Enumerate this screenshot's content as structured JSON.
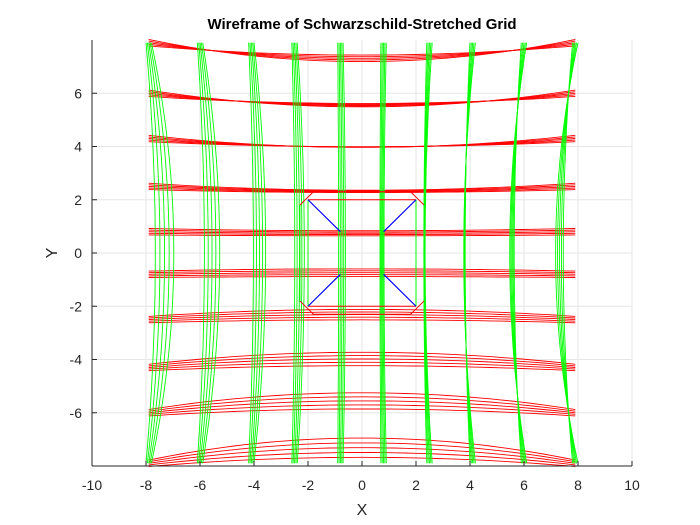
{
  "chart_data": {
    "type": "line",
    "title": "Wireframe of Schwarzschild-Stretched Grid",
    "xlabel": "X",
    "ylabel": "Y",
    "xlim": [
      -10,
      10
    ],
    "ylim": [
      -8,
      8
    ],
    "xticks": [
      -10,
      -8,
      -6,
      -4,
      -2,
      0,
      2,
      4,
      6,
      8,
      10
    ],
    "yticks": [
      -6,
      -4,
      -2,
      0,
      2,
      4,
      6
    ],
    "grid": true,
    "grid_lines_x": [
      -7.9,
      -6.0,
      -4.1,
      -2.5,
      -0.8,
      0.8,
      2.5,
      4.1,
      6.0,
      7.9
    ],
    "grid_lines_y": [
      7.9,
      6.0,
      4.3,
      2.5,
      0.8,
      -0.8,
      -2.5,
      -4.3,
      -6.0,
      -7.9
    ],
    "grid_bulge": 0.35,
    "layers": 5,
    "horizon_octagon": [
      [
        -1.8,
        2.3
      ],
      [
        1.8,
        2.3
      ],
      [
        2.3,
        1.8
      ],
      [
        2.3,
        -1.8
      ],
      [
        1.8,
        -2.3
      ],
      [
        -1.8,
        -2.3
      ],
      [
        -2.3,
        -1.8
      ],
      [
        -2.3,
        1.8
      ]
    ],
    "horizon_box": [
      [
        -2.0,
        2.0
      ],
      [
        2.0,
        2.0
      ],
      [
        2.0,
        -2.0
      ],
      [
        -2.0,
        -2.0
      ]
    ],
    "inner_box": [
      [
        -0.8,
        0.8
      ],
      [
        0.8,
        0.8
      ],
      [
        0.8,
        -0.8
      ],
      [
        -0.8,
        -0.8
      ]
    ],
    "colors": {
      "horizontal": "#ff0000",
      "vertical": "#00ff00",
      "diagonal": "#0000ff",
      "axes": "#262626",
      "grid": "#e6e6e6"
    }
  }
}
